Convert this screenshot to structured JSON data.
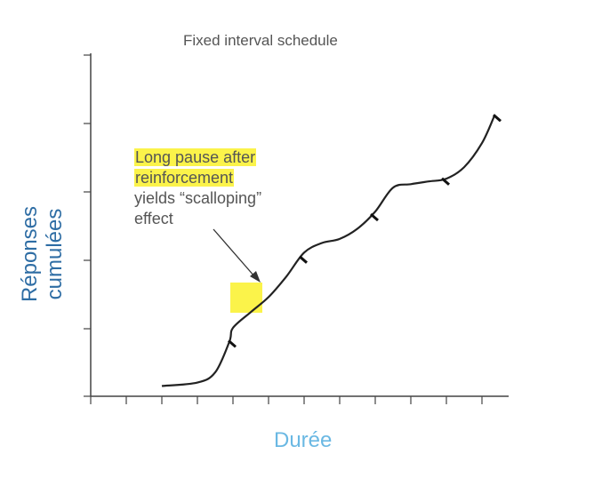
{
  "chart_data": {
    "type": "line",
    "title": "Fixed interval schedule",
    "xlabel": "Durée",
    "ylabel": "Réponses cumulées",
    "grid": false,
    "annotation": {
      "lines": [
        "Long pause after",
        "reinforcement",
        "yields “scalloping”",
        "effect"
      ],
      "highlighted_lines": [
        0,
        1
      ]
    },
    "series": [
      {
        "x": [
          2.0,
          3.0,
          3.5,
          3.9,
          4.0,
          4.5,
          5.0,
          5.5,
          6.0,
          6.5,
          7.0,
          7.5,
          8.0,
          8.5,
          9.0,
          9.5,
          10.0,
          10.5,
          11.0,
          11.35
        ],
        "values": [
          0.15,
          0.2,
          0.35,
          0.8,
          1.0,
          1.23,
          1.45,
          1.75,
          2.1,
          2.24,
          2.3,
          2.45,
          2.7,
          3.05,
          3.1,
          3.14,
          3.18,
          3.35,
          3.7,
          4.1
        ]
      }
    ],
    "reinforcement_x": [
      3.9,
      5.9,
      7.9,
      9.9,
      11.35
    ]
  }
}
